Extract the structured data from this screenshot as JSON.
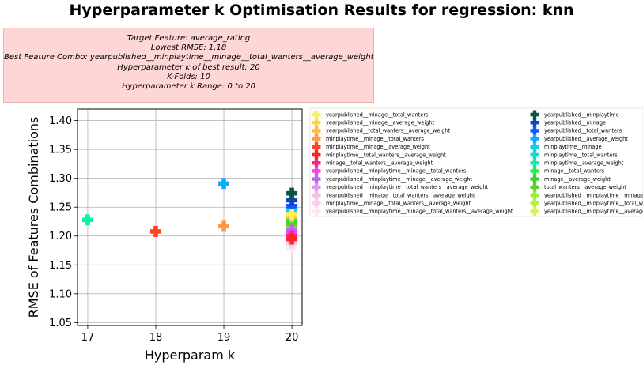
{
  "title": "Hyperparameter k Optimisation Results for regression: knn",
  "info": {
    "target": "Target Feature: average_rating",
    "lowest_rmse": "Lowest RMSE: 1.18",
    "best_combo": "Best Feature Combo: yearpublished__minplaytime__minage__total_wanters__average_weight",
    "best_k": "Hyperparameter k of best result: 20",
    "kfolds": "K-Folds: 10",
    "k_range": "Hyperparameter k Range: 0 to 20"
  },
  "chart_data": {
    "type": "scatter",
    "xlabel": "Hyperparam k",
    "ylabel": "RMSE of Features Combinations",
    "xlim": [
      16.85,
      20.15
    ],
    "ylim": [
      1.045,
      1.42
    ],
    "xticks": [
      "17",
      "18",
      "19",
      "20"
    ],
    "yticks": [
      "1.05",
      "1.10",
      "1.15",
      "1.20",
      "1.25",
      "1.30",
      "1.35",
      "1.40"
    ],
    "grid": true,
    "legend_placement": "right, outside plot, two columns",
    "series": [
      {
        "name": "yearpublished__minage__total_wanters",
        "color": "#ffee55",
        "x": 20,
        "y": 1.238
      },
      {
        "name": "yearpublished__minage__average_weight",
        "color": "#ffd744",
        "x": 20,
        "y": 1.236
      },
      {
        "name": "yearpublished__total_wanters__average_weight",
        "color": "#ffbb44",
        "x": 20,
        "y": 1.234
      },
      {
        "name": "minplaytime__minage__total_wanters",
        "color": "#ff9944",
        "x": 19,
        "y": 1.217
      },
      {
        "name": "minplaytime__minage__average_weight",
        "color": "#ff4422",
        "x": 18,
        "y": 1.208
      },
      {
        "name": "minplaytime__total_wanters__average_weight",
        "color": "#ff2222",
        "x": 20,
        "y": 1.195
      },
      {
        "name": "minage__total_wanters__average_weight",
        "color": "#ff2288",
        "x": 20,
        "y": 1.2
      },
      {
        "name": "yearpublished__minplaytime__minage__total_wanters",
        "color": "#ee44ee",
        "x": 20,
        "y": 1.205
      },
      {
        "name": "yearpublished__minplaytime__minage__average_weight",
        "color": "#bb66ee",
        "x": 20,
        "y": 1.21
      },
      {
        "name": "yearpublished__minplaytime__total_wanters__average_weight",
        "color": "#dd99ee",
        "x": 20,
        "y": 1.198
      },
      {
        "name": "yearpublished__minage__total_wanters__average_weight",
        "color": "#f2bbe8",
        "x": 20,
        "y": 1.193
      },
      {
        "name": "minplaytime__minage__total_wanters__average_weight",
        "color": "#f8d0ee",
        "x": 20,
        "y": 1.188
      },
      {
        "name": "yearpublished__minplaytime__minage__total_wanters__average_weight",
        "color": "#fce8f4",
        "x": 20,
        "y": 1.18
      },
      {
        "name": "yearpublished__minplaytime",
        "color": "#0a5540",
        "x": 20,
        "y": 1.274
      },
      {
        "name": "yearpublished__minage",
        "color": "#1144bb",
        "x": 20,
        "y": 1.262
      },
      {
        "name": "yearpublished__total_wanters",
        "color": "#1155ff",
        "x": 20,
        "y": 1.252
      },
      {
        "name": "yearpublished__average_weight",
        "color": "#11aaff",
        "x": 19,
        "y": 1.291
      },
      {
        "name": "minplaytime__minage",
        "color": "#11ccee",
        "x": 20,
        "y": 1.245
      },
      {
        "name": "minplaytime__total_wanters",
        "color": "#11ddcc",
        "x": 20,
        "y": 1.24
      },
      {
        "name": "minplaytime__average_weight",
        "color": "#11eeaa",
        "x": 17,
        "y": 1.228
      },
      {
        "name": "minage__total_wanters",
        "color": "#22ee55",
        "x": 20,
        "y": 1.232
      },
      {
        "name": "minage__average_weight",
        "color": "#44cc33",
        "x": 20,
        "y": 1.226
      },
      {
        "name": "total_wanters__average_weight",
        "color": "#66cc33",
        "x": 20,
        "y": 1.22
      },
      {
        "name": "yearpublished__minplaytime__minage",
        "color": "#99ee33",
        "x": 20,
        "y": 1.215
      },
      {
        "name": "yearpublished__minplaytime__total_wanters",
        "color": "#bbee44",
        "x": 20,
        "y": 1.213
      },
      {
        "name": "yearpublished__minplaytime__average_weight",
        "color": "#ddf055",
        "x": 20,
        "y": 1.243
      }
    ]
  }
}
